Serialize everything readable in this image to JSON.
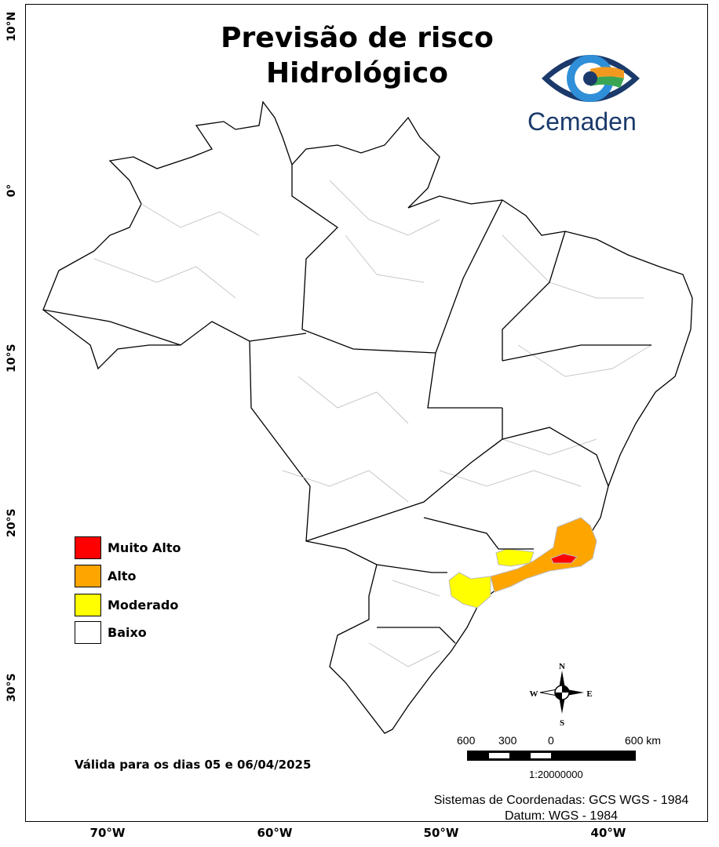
{
  "title": {
    "line1": "Previsão de risco",
    "line2": "Hidrológico"
  },
  "logo": {
    "text": "Cemaden",
    "colors": {
      "navy": "#1b3a6b",
      "blue": "#2f8fd8",
      "green": "#3aa655",
      "orange": "#f29a1f"
    }
  },
  "axes": {
    "lat_labels": [
      "10°N",
      "0°",
      "10°S",
      "20°S",
      "30°S"
    ],
    "lon_labels": [
      "70°W",
      "60°W",
      "50°W",
      "40°W"
    ]
  },
  "legend": [
    {
      "label": "Muito Alto",
      "color": "#ff0000"
    },
    {
      "label": "Alto",
      "color": "#ffa500"
    },
    {
      "label": "Moderado",
      "color": "#ffff00"
    },
    {
      "label": "Baixo",
      "color": "#ffffff"
    }
  ],
  "validity": "Válida para os dias 05 e 06/04/2025",
  "compass": {
    "n": "N",
    "s": "S",
    "e": "E",
    "w": "W"
  },
  "scale_bar": {
    "labels": [
      "600",
      "300",
      "0",
      "600 km"
    ],
    "ratio": "1:20000000"
  },
  "coordinate_system": {
    "line1": "Sistemas de Coordenadas: GCS WGS - 1984",
    "line2": "Datum: WGS - 1984"
  }
}
